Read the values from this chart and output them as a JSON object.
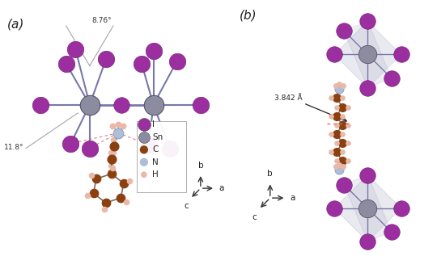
{
  "background_color": "#ffffff",
  "panel_a_label": "(a)",
  "panel_b_label": "(b)",
  "angle1_label": "8.76°",
  "angle2_label": "11.8°",
  "distance_label": "3.842 Å",
  "legend_items": [
    {
      "label": "I",
      "color": "#9b2fa0"
    },
    {
      "label": "Sn",
      "color": "#8c8ca0"
    },
    {
      "label": "C",
      "color": "#8b4010"
    },
    {
      "label": "N",
      "color": "#b0bdd8"
    },
    {
      "label": "H",
      "color": "#e8b8a8"
    }
  ],
  "axes_labels": {
    "b": "b",
    "a": "a",
    "c": "c"
  },
  "I_color": "#9b2fa0",
  "Sn_color": "#8c8ca0",
  "C_color": "#8b4010",
  "N_color": "#b0bdd8",
  "H_color": "#e8b8a8",
  "bond_color": "#7878aa",
  "bond_color_org": "#7a6a60",
  "octahedron_face_color": "#b8b8d0",
  "dashed_line_color": "#e06060",
  "annotation_line_color": "#444444"
}
